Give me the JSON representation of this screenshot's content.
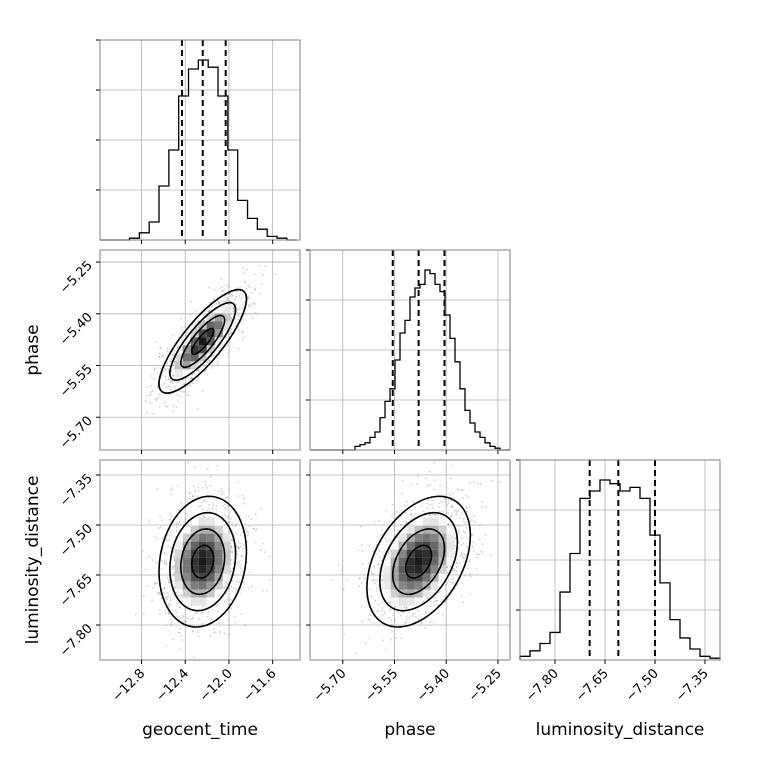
{
  "chart_data": {
    "type": "corner",
    "parameters": [
      "geocent_time",
      "phase",
      "luminosity_distance"
    ],
    "axis_labels": {
      "geocent_time": "geocent_time",
      "phase": "phase",
      "luminosity_distance": "luminosity_distance"
    },
    "ranges": {
      "geocent_time": [
        -13.18,
        -11.35
      ],
      "phase": [
        -5.795,
        -5.215
      ],
      "luminosity_distance": [
        -7.905,
        -7.305
      ]
    },
    "ticks": {
      "geocent_time": [
        {
          "value": -12.8,
          "label": "−12.8"
        },
        {
          "value": -12.4,
          "label": "−12.4"
        },
        {
          "value": -12.0,
          "label": "−12.0"
        },
        {
          "value": -11.6,
          "label": "−11.6"
        }
      ],
      "phase": [
        {
          "value": -5.7,
          "label": "−5.70"
        },
        {
          "value": -5.55,
          "label": "−5.55"
        },
        {
          "value": -5.4,
          "label": "−5.40"
        },
        {
          "value": -5.25,
          "label": "−5.25"
        }
      ],
      "luminosity_distance": [
        {
          "value": -7.8,
          "label": "−7.80"
        },
        {
          "value": -7.65,
          "label": "−7.65"
        },
        {
          "value": -7.5,
          "label": "−7.50"
        },
        {
          "value": -7.35,
          "label": "−7.35"
        }
      ]
    },
    "quantiles": {
      "geocent_time": [
        -12.43,
        -12.24,
        -12.03
      ],
      "phase": [
        -5.555,
        -5.48,
        -5.405
      ],
      "luminosity_distance": [
        -7.696,
        -7.61,
        -7.5
      ]
    },
    "histograms": {
      "geocent_time": {
        "bins": [
          -13.18,
          -13.09,
          -13.0,
          -12.91,
          -12.82,
          -12.73,
          -12.64,
          -12.55,
          -12.46,
          -12.37,
          -12.28,
          -12.19,
          -12.1,
          -12.01,
          -11.92,
          -11.83,
          -11.74,
          -11.65,
          -11.56,
          -11.47,
          -11.38
        ],
        "counts": [
          0,
          0,
          0,
          1,
          4,
          10,
          30,
          50,
          80,
          95,
          100,
          96,
          80,
          50,
          22,
          12,
          6,
          2,
          1,
          0
        ]
      },
      "phase": {
        "bins": [
          -5.795,
          -5.7805,
          -5.766,
          -5.7515,
          -5.737,
          -5.7225,
          -5.708,
          -5.6935,
          -5.679,
          -5.6645,
          -5.65,
          -5.6355,
          -5.621,
          -5.6065,
          -5.592,
          -5.5775,
          -5.563,
          -5.5485,
          -5.534,
          -5.5195,
          -5.505,
          -5.4905,
          -5.476,
          -5.4615,
          -5.447,
          -5.4325,
          -5.418,
          -5.4035,
          -5.389,
          -5.3745,
          -5.36,
          -5.3455,
          -5.331,
          -5.3165,
          -5.302,
          -5.2875,
          -5.273,
          -5.2585,
          -5.244,
          -5.2295,
          -5.215
        ],
        "counts": [
          0,
          0,
          0,
          0,
          0,
          0,
          0,
          0,
          0,
          2,
          3,
          4,
          7,
          10,
          18,
          27,
          34,
          50,
          65,
          72,
          85,
          90,
          92,
          100,
          98,
          92,
          88,
          75,
          62,
          49,
          34,
          22,
          15,
          10,
          7,
          4,
          2,
          1,
          0,
          0
        ]
      },
      "luminosity_distance": {
        "bins": [
          -7.905,
          -7.875,
          -7.845,
          -7.815,
          -7.785,
          -7.755,
          -7.725,
          -7.695,
          -7.665,
          -7.635,
          -7.605,
          -7.575,
          -7.545,
          -7.515,
          -7.485,
          -7.455,
          -7.425,
          -7.395,
          -7.365,
          -7.335,
          -7.305
        ],
        "counts": [
          2,
          5,
          9,
          15,
          37,
          58,
          88,
          92,
          98,
          96,
          92,
          94,
          88,
          68,
          42,
          22,
          12,
          6,
          2,
          1
        ]
      }
    },
    "contour_levels": [
      "0.5",
      "1.0",
      "1.5",
      "2.0"
    ],
    "scatter_color": "#777777",
    "line_color": "#000000",
    "grid": true
  }
}
